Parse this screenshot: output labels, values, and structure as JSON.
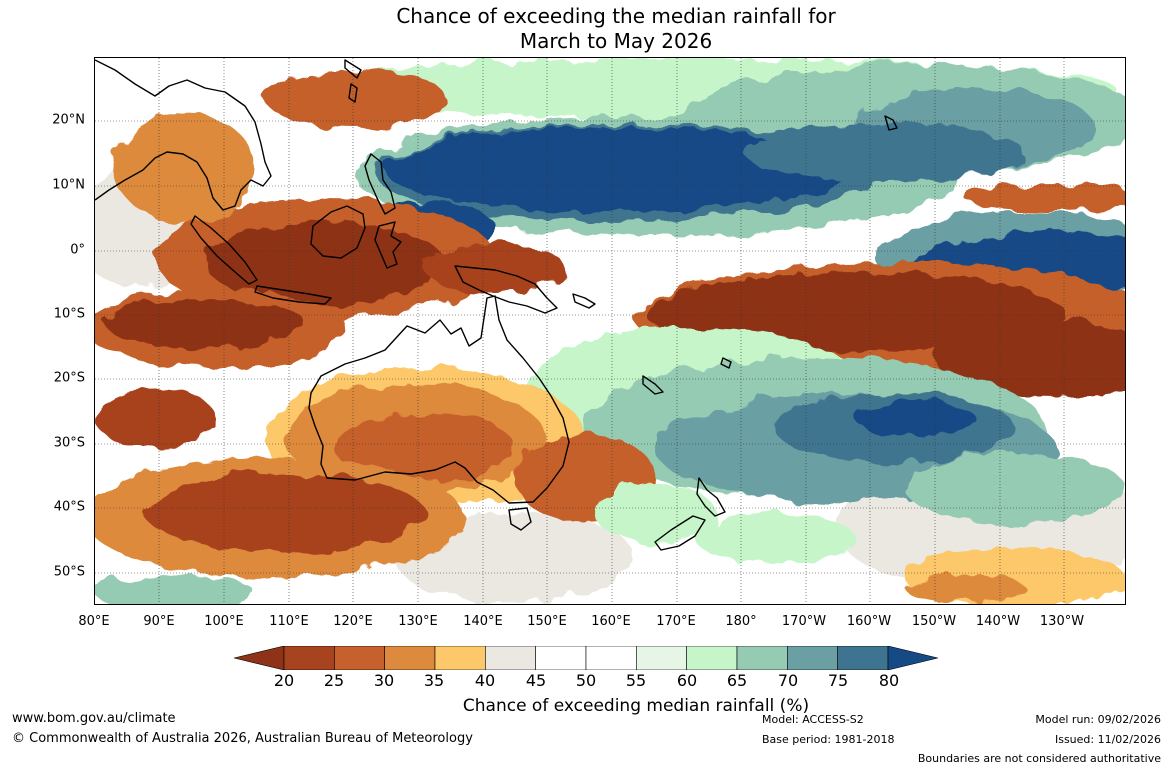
{
  "title": {
    "line1": "Chance of exceeding the median rainfall for",
    "line2": "March to May 2026"
  },
  "lat_labels": [
    "20°N",
    "10°N",
    "0°",
    "10°S",
    "20°S",
    "30°S",
    "40°S",
    "50°S"
  ],
  "lon_labels": [
    "80°E",
    "90°E",
    "100°E",
    "110°E",
    "120°E",
    "130°E",
    "140°E",
    "150°E",
    "160°E",
    "170°E",
    "180°",
    "170°W",
    "160°W",
    "150°W",
    "140°W",
    "130°W"
  ],
  "colorbar": {
    "ticks": [
      "20",
      "25",
      "30",
      "35",
      "40",
      "45",
      "50",
      "55",
      "60",
      "65",
      "70",
      "75",
      "80"
    ],
    "colors": [
      "#8e3318",
      "#a8431f",
      "#c6602c",
      "#dd8a3e",
      "#fdc86a",
      "#ebe8e2",
      "#ffffff",
      "#ffffff",
      "#e6f5e6",
      "#c6f5c9",
      "#96cbb3",
      "#6a9fa3",
      "#3f7490",
      "#154a85"
    ],
    "title": "Chance of exceeding median rainfall (%)"
  },
  "footer": {
    "website": "www.bom.gov.au/climate",
    "copyright": "© Commonwealth of Australia 2026, Australian Bureau of Meteorology",
    "model": "Model: ACCESS-S2",
    "base_period": "Base period: 1981-2018",
    "model_run": "Model run: 09/02/2026",
    "issued": "Issued: 11/02/2026",
    "disclaimer": "Boundaries are not considered authoritative"
  }
}
